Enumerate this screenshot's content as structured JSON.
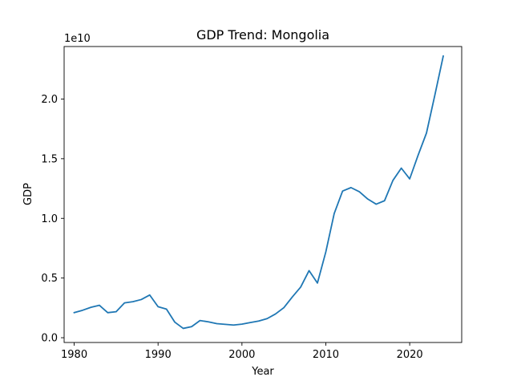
{
  "chart_data": {
    "type": "line",
    "title": "GDP Trend: Mongolia",
    "xlabel": "Year",
    "ylabel": "GDP",
    "offset_text": "1e10",
    "xlim": [
      1978.8,
      2026.2
    ],
    "ylim": [
      -400000000.0,
      24400000000.0
    ],
    "x_ticks": [
      1980,
      1990,
      2000,
      2010,
      2020
    ],
    "x_tick_labels": [
      "1980",
      "1990",
      "2000",
      "2010",
      "2020"
    ],
    "y_ticks": [
      0,
      5000000000.0,
      10000000000.0,
      15000000000.0,
      20000000000.0
    ],
    "y_tick_labels": [
      "0.0",
      "0.5",
      "1.0",
      "1.5",
      "2.0"
    ],
    "grid": false,
    "series": [
      {
        "color": "#1f77b4",
        "x": [
          1980,
          1981,
          1982,
          1983,
          1984,
          1985,
          1986,
          1987,
          1988,
          1989,
          1990,
          1991,
          1992,
          1993,
          1994,
          1995,
          1996,
          1997,
          1998,
          1999,
          2000,
          2001,
          2002,
          2003,
          2004,
          2005,
          2006,
          2007,
          2008,
          2009,
          2010,
          2011,
          2012,
          2013,
          2014,
          2015,
          2016,
          2017,
          2018,
          2019,
          2020,
          2021,
          2022,
          2023,
          2024
        ],
        "y": [
          2100000000.0,
          2300000000.0,
          2550000000.0,
          2720000000.0,
          2100000000.0,
          2180000000.0,
          2920000000.0,
          3020000000.0,
          3200000000.0,
          3580000000.0,
          2600000000.0,
          2400000000.0,
          1300000000.0,
          780000000.0,
          930000000.0,
          1440000000.0,
          1330000000.0,
          1180000000.0,
          1120000000.0,
          1060000000.0,
          1140000000.0,
          1270000000.0,
          1400000000.0,
          1600000000.0,
          1990000000.0,
          2520000000.0,
          3410000000.0,
          4240000000.0,
          5620000000.0,
          4580000000.0,
          7190000000.0,
          10410000000.0,
          12290000000.0,
          12580000000.0,
          12230000000.0,
          11620000000.0,
          11190000000.0,
          11480000000.0,
          13180000000.0,
          14210000000.0,
          13310000000.0,
          15290000000.0,
          17150000000.0,
          20330000000.0,
          23600000000.0
        ]
      }
    ]
  }
}
